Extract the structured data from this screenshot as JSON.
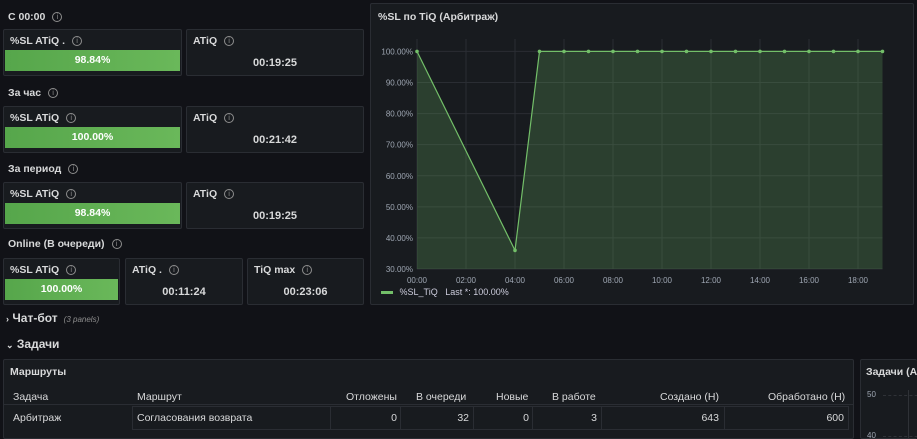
{
  "sections": {
    "since_midnight": "С 00:00",
    "per_hour": "За час",
    "per_period": "За период",
    "online": "Online (В очереди)"
  },
  "stats": {
    "row1": {
      "sl_title": "%SL ATiQ .",
      "sl_value": "98.84%",
      "sl_fill": 0.9884,
      "atiq_title": "ATiQ",
      "atiq_value": "00:19:25"
    },
    "row2": {
      "sl_title": "%SL ATiQ",
      "sl_value": "100.00%",
      "sl_fill": 1.0,
      "atiq_title": "ATiQ",
      "atiq_value": "00:21:42"
    },
    "row3": {
      "sl_title": "%SL ATiQ",
      "sl_value": "98.84%",
      "sl_fill": 0.9884,
      "atiq_title": "ATiQ",
      "atiq_value": "00:19:25"
    },
    "row4": {
      "sl_title": "%SL ATiQ",
      "sl_value": "100.00%",
      "sl_fill": 1.0,
      "atiq_title": "ATiQ .",
      "atiq_value": "00:11:24",
      "tiqmax_title": "TiQ max",
      "tiqmax_value": "00:23:06"
    }
  },
  "chart_panel": {
    "title": "%SL по TiQ (Арбитраж)",
    "legend_label": "%SL_TiQ",
    "legend_last": "Last *: 100.00%",
    "series_color": "#73bf69"
  },
  "chart_data": {
    "type": "area",
    "title": "%SL по TiQ (Арбитраж)",
    "x_ticks": [
      "00:00",
      "02:00",
      "04:00",
      "06:00",
      "08:00",
      "10:00",
      "12:00",
      "14:00",
      "16:00",
      "18:00"
    ],
    "y_ticks": [
      "30.00%",
      "40.00%",
      "50.00%",
      "60.00%",
      "70.00%",
      "80.00%",
      "90.00%",
      "100.00%"
    ],
    "ylim": [
      30,
      104
    ],
    "xlim_hours": [
      0,
      19
    ],
    "grid": true,
    "legend_placement": "bottom-left",
    "series": [
      {
        "name": "%SL_TiQ",
        "x": [
          "00:00",
          "04:00",
          "05:00",
          "06:00",
          "07:00",
          "08:00",
          "09:00",
          "10:00",
          "11:00",
          "12:00",
          "13:00",
          "14:00",
          "15:00",
          "16:00",
          "17:00",
          "18:00",
          "19:00"
        ],
        "values": [
          100,
          36,
          100,
          100,
          100,
          100,
          100,
          100,
          100,
          100,
          100,
          100,
          100,
          100,
          100,
          100,
          100
        ]
      }
    ]
  },
  "rows": {
    "chatbot": {
      "title": "Чат-бот",
      "note": "(3 panels)"
    },
    "tasks": {
      "title": "Задачи"
    }
  },
  "routes_table": {
    "title": "Маршруты",
    "headers": [
      "Задача",
      "Маршрут",
      "Отложены",
      "В очереди",
      "Новые",
      "В работе",
      "Создано (Н)",
      "Обработано (Н)"
    ],
    "rows": [
      [
        "Арбитраж",
        "Согласования возврата",
        "0",
        "32",
        "0",
        "3",
        "643",
        "600"
      ]
    ]
  },
  "side_panel": {
    "title": "Задачи (Ар",
    "y_ticks": [
      "50",
      "40"
    ]
  }
}
